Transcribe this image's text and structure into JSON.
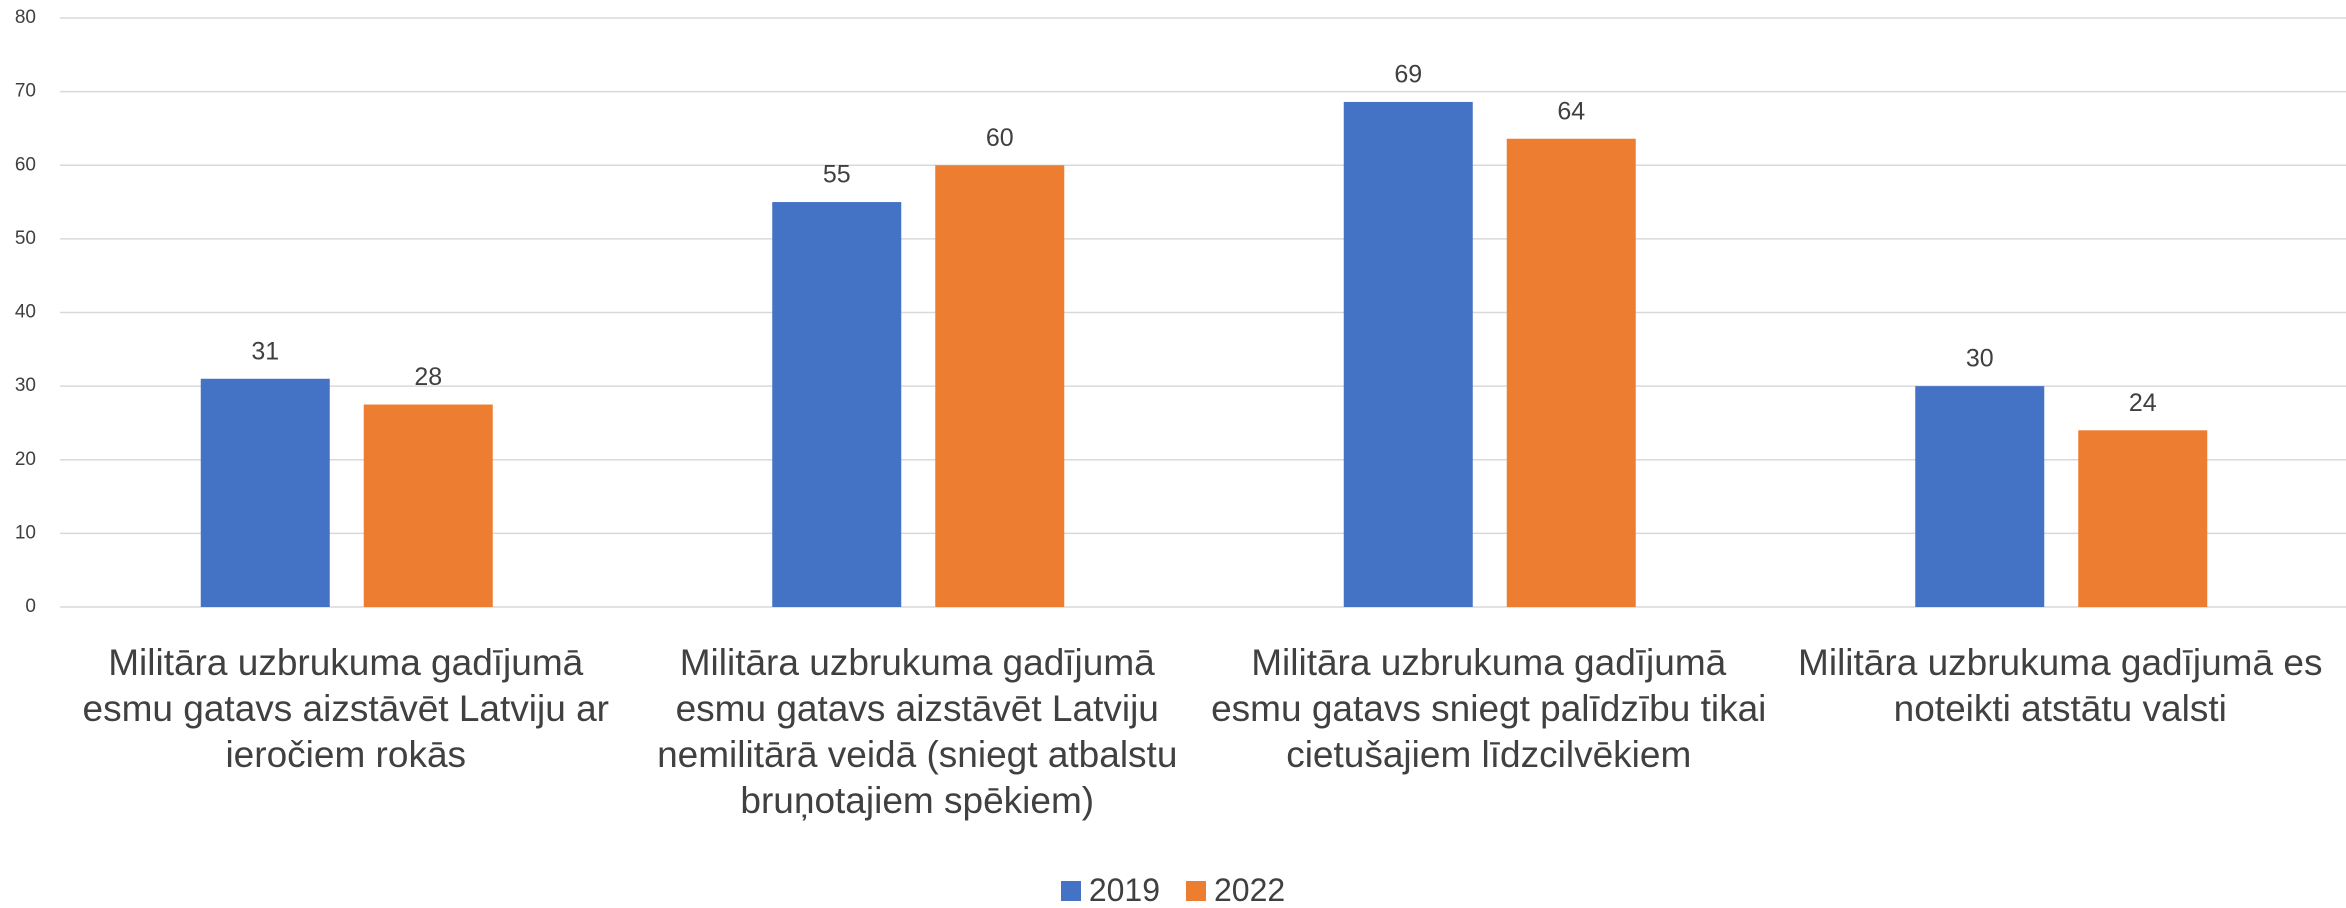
{
  "chart_data": {
    "type": "bar",
    "categories": [
      "Militāra uzbrukuma gadījumā esmu gatavs aizstāvēt Latviju ar ieročiem rokās",
      "Militāra uzbrukuma gadījumā esmu gatavs aizstāvēt Latviju nemilitārā veidā (sniegt atbalstu bruņotajiem spēkiem)",
      "Militāra uzbrukuma gadījumā esmu gatavs sniegt palīdzību tikai cietušajiem līdzcilvēkiem",
      "Militāra uzbrukuma gadījumā es noteikti atstātu valsti"
    ],
    "series": [
      {
        "name": "2019",
        "color": "#4472c4",
        "values": [
          31,
          55,
          68.6,
          30
        ],
        "value_labels": [
          "31",
          "55",
          "69",
          "30"
        ]
      },
      {
        "name": "2022",
        "color": "#ed7d31",
        "values": [
          27.5,
          60,
          63.6,
          24
        ],
        "value_labels": [
          "28",
          "60",
          "64",
          "24"
        ]
      }
    ],
    "ylim": [
      0,
      80
    ],
    "yticks": [
      0,
      10,
      20,
      30,
      40,
      50,
      60,
      70,
      80
    ],
    "grid": true,
    "legend": "bottom"
  }
}
